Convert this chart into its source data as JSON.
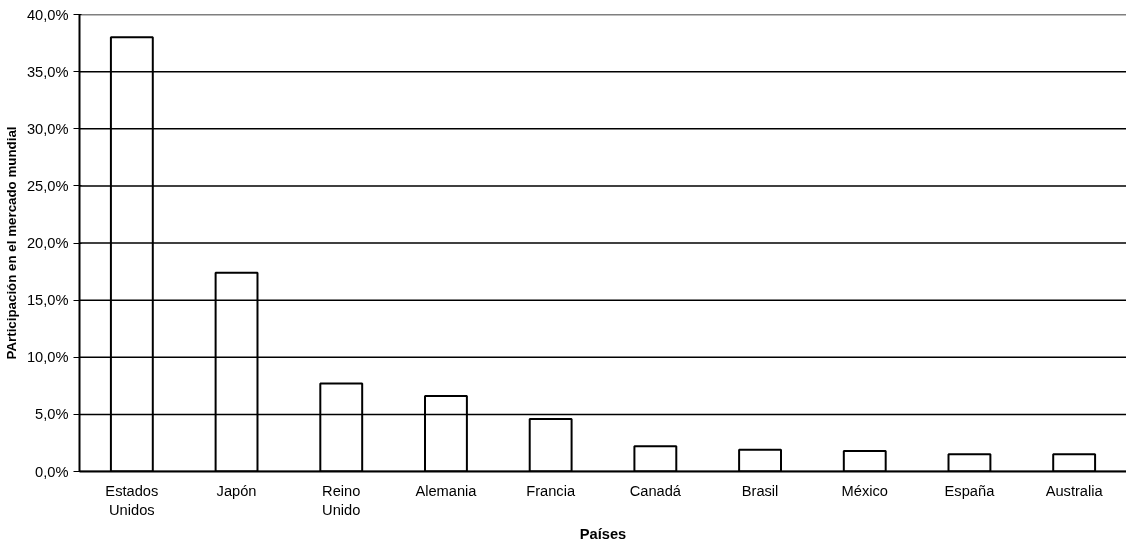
{
  "chart_data": {
    "type": "bar",
    "xlabel": "Países",
    "ylabel": "PArticipación en el mercado mundial",
    "categories": [
      "Estados Unidos",
      "Japón",
      "Reino Unido",
      "Alemania",
      "Francia",
      "Canadá",
      "Brasil",
      "México",
      "España",
      "Australia"
    ],
    "values": [
      38.0,
      17.4,
      7.7,
      6.6,
      4.6,
      2.2,
      1.9,
      1.8,
      1.5,
      1.5
    ],
    "color": "#ffffff",
    "ylim": [
      0,
      40
    ],
    "yticks": [
      {
        "value": 0,
        "label": "0,0%"
      },
      {
        "value": 5,
        "label": "5,0%"
      },
      {
        "value": 10,
        "label": "10,0%"
      },
      {
        "value": 15,
        "label": "15,0%"
      },
      {
        "value": 20,
        "label": "20,0%"
      },
      {
        "value": 25,
        "label": "25,0%"
      },
      {
        "value": 30,
        "label": "30,0%"
      },
      {
        "value": 35,
        "label": "35,0%"
      },
      {
        "value": 40,
        "label": "40,0%"
      }
    ],
    "grid": "y"
  }
}
